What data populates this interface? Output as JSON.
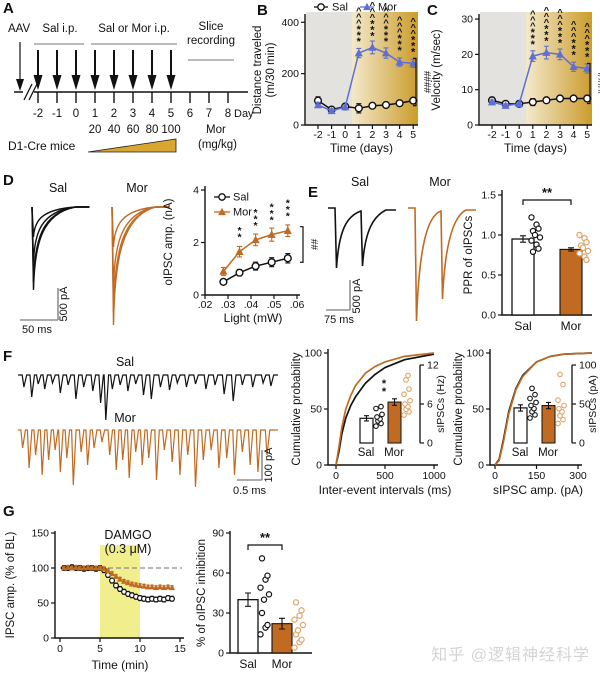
{
  "figure": {
    "panel_labels": {
      "A": "A",
      "B": "B",
      "C": "C",
      "D": "D",
      "E": "E",
      "F": "F",
      "G": "G"
    },
    "watermark": "知乎 @逻辑神经科学",
    "colors": {
      "sal": "#111111",
      "mor_blue": "#5e6fd3",
      "mor_orange": "#c16a22",
      "mor_scatter": "#dea469",
      "gold_light": "#f3e9cb",
      "gold_dark": "#cc9c2c",
      "gray_bg": "#e4e2df",
      "yellow_shade": "#f1ee8d",
      "scalebar": "#909090",
      "dash": "#8c8c8c"
    }
  },
  "panelA": {
    "aav": "AAV",
    "sal_ip": "Sal i.p.",
    "sal_or_mor_ip": "Sal or Mor i.p.",
    "slice_line1": "Slice",
    "slice_line2": "recording",
    "days": [
      "-2",
      "-1",
      "0",
      "1",
      "2",
      "3",
      "4",
      "5",
      "6",
      "7",
      "8"
    ],
    "day_word": "Day",
    "sal_arrow_days": [
      -2,
      -1,
      0
    ],
    "mor_arrow_days": [
      1,
      2,
      3,
      4,
      5
    ],
    "doses": [
      "20",
      "40",
      "60",
      "80",
      "100"
    ],
    "mor": "Mor",
    "mor_unit": "(mg/kg)",
    "mice": "D1-Cre mice"
  },
  "chart_data": {
    "B": {
      "type": "line",
      "xlabel": "Time (days)",
      "ylabel_lines": [
        "Distance traveled",
        "(m/30 min)"
      ],
      "x": [
        -2,
        -1,
        0,
        1,
        2,
        3,
        4,
        5
      ],
      "yticks": [
        0,
        200,
        400
      ],
      "ylim": [
        0,
        440
      ],
      "legend": [
        "Sal",
        "Mor"
      ],
      "series": [
        {
          "name": "Sal",
          "marker": "circle",
          "values": [
            95,
            60,
            72,
            65,
            75,
            78,
            85,
            95
          ],
          "err": [
            15,
            8,
            10,
            18,
            8,
            8,
            8,
            8
          ]
        },
        {
          "name": "Mor",
          "marker": "triangle",
          "values": [
            78,
            55,
            70,
            280,
            302,
            280,
            245,
            240
          ],
          "err": [
            10,
            8,
            8,
            18,
            25,
            20,
            16,
            16
          ]
        }
      ],
      "sig_days": [
        1,
        2,
        3,
        4,
        5
      ],
      "stars": "***",
      "carets": "^^^",
      "bracket": "####"
    },
    "C": {
      "type": "line",
      "xlabel": "Time (days)",
      "ylabel_lines": [
        "Velocity (m/sec)"
      ],
      "x": [
        -2,
        -1,
        0,
        1,
        2,
        3,
        4,
        5
      ],
      "yticks": [
        0,
        10,
        20,
        30
      ],
      "ylim": [
        0,
        32
      ],
      "series": [
        {
          "name": "Sal",
          "marker": "circle",
          "values": [
            7,
            6,
            6,
            6.5,
            7,
            7.5,
            7.5,
            7.5
          ],
          "err": [
            0.8,
            0.5,
            0.5,
            1,
            0.6,
            0.6,
            0.6,
            0.6
          ]
        },
        {
          "name": "Mor",
          "marker": "triangle",
          "values": [
            6.5,
            5.5,
            6,
            19.5,
            20.5,
            20,
            16.5,
            16
          ],
          "err": [
            0.6,
            0.5,
            0.5,
            1.5,
            1.8,
            1.5,
            1.3,
            1.3
          ]
        }
      ],
      "sig_days": [
        1,
        2,
        3,
        4,
        5
      ],
      "stars": "***",
      "carets": "^^^",
      "bracket": "####"
    },
    "D": {
      "type": "line",
      "xlabel": "Light (mW)",
      "ylabel": "oIPSC amp. (nA)",
      "xticks": [
        0.02,
        0.03,
        0.04,
        0.05,
        0.06
      ],
      "xtick_labels": [
        ".02",
        ".03",
        ".04",
        ".05",
        ".06"
      ],
      "yticks": [
        0,
        2,
        4
      ],
      "legend": [
        "Sal",
        "Mor"
      ],
      "x": [
        0.028,
        0.035,
        0.042,
        0.049,
        0.056
      ],
      "series": [
        {
          "name": "Sal",
          "marker": "circle",
          "values": [
            0.5,
            0.85,
            1.1,
            1.25,
            1.4
          ],
          "err": [
            0.1,
            0.12,
            0.15,
            0.17,
            0.18
          ]
        },
        {
          "name": "Mor",
          "marker": "triangle",
          "values": [
            0.9,
            1.65,
            2.1,
            2.3,
            2.45
          ],
          "err": [
            0.15,
            0.2,
            0.22,
            0.25,
            0.22
          ]
        }
      ],
      "sig_per_point": [
        "",
        "**",
        "***",
        "***",
        "***"
      ],
      "bracket": "##"
    },
    "E": {
      "type": "bar",
      "ylabel": "PPR of oIPSCs",
      "ytick_labels": [
        "0.0",
        "0.5",
        "1.0",
        "1.5"
      ],
      "yticks": [
        0,
        0.5,
        1,
        1.5
      ],
      "categories": [
        "Sal",
        "Mor"
      ],
      "values": [
        0.95,
        0.82
      ],
      "err": [
        0.04,
        0.02
      ],
      "sig": "**",
      "scatter_sal": [
        1.22,
        1.13,
        1.08,
        1.05,
        1.0,
        0.97,
        0.93,
        0.88,
        0.83,
        0.79
      ],
      "scatter_mor": [
        1.0,
        0.96,
        0.91,
        0.87,
        0.84,
        0.8,
        0.77,
        0.73,
        0.69
      ]
    },
    "F1": {
      "type": "cumulative",
      "xlabel": "Inter-event intervals (ms)",
      "ylabel": "Cumulative probability",
      "xticks": [
        0,
        500,
        1000
      ],
      "yticks": [
        0,
        50,
        100
      ],
      "curve_sal": [
        [
          0,
          0
        ],
        [
          30,
          12
        ],
        [
          60,
          28
        ],
        [
          100,
          42
        ],
        [
          150,
          53
        ],
        [
          200,
          61
        ],
        [
          300,
          73
        ],
        [
          400,
          81
        ],
        [
          500,
          87
        ],
        [
          700,
          94
        ],
        [
          1000,
          99
        ]
      ],
      "curve_mor": [
        [
          0,
          0
        ],
        [
          30,
          16
        ],
        [
          60,
          34
        ],
        [
          100,
          50
        ],
        [
          150,
          62
        ],
        [
          200,
          71
        ],
        [
          300,
          82
        ],
        [
          400,
          88
        ],
        [
          500,
          92
        ],
        [
          700,
          97
        ],
        [
          1000,
          100
        ]
      ],
      "inset": {
        "ylabel": "sIPSCs (Hz)",
        "yticks": [
          0,
          6,
          12
        ],
        "categories": [
          "Sal",
          "Mor"
        ],
        "values": [
          3.8,
          6.3
        ],
        "err": [
          0.4,
          0.5
        ],
        "sig": "**",
        "scatter_sal": [
          2.6,
          3.0,
          3.4,
          3.7,
          4.0,
          4.4,
          5.3,
          5.6
        ],
        "scatter_mor": [
          4.3,
          4.8,
          5.2,
          5.6,
          6.0,
          6.5,
          7.5,
          8.3,
          9.7,
          10.4
        ]
      }
    },
    "F2": {
      "type": "cumulative",
      "xlabel": "sIPSC amp. (pA)",
      "ylabel": "Cumulative probability",
      "xticks": [
        0,
        150,
        300
      ],
      "yticks": [
        0,
        50,
        100
      ],
      "curve_sal": [
        [
          0,
          0
        ],
        [
          15,
          5
        ],
        [
          30,
          22
        ],
        [
          50,
          48
        ],
        [
          75,
          68
        ],
        [
          100,
          80
        ],
        [
          150,
          92
        ],
        [
          200,
          97
        ],
        [
          250,
          99
        ],
        [
          350,
          100
        ]
      ],
      "curve_mor": [
        [
          0,
          0
        ],
        [
          15,
          4
        ],
        [
          30,
          20
        ],
        [
          50,
          46
        ],
        [
          75,
          67
        ],
        [
          100,
          79
        ],
        [
          150,
          92
        ],
        [
          200,
          97
        ],
        [
          250,
          99
        ],
        [
          350,
          100
        ]
      ],
      "inset": {
        "ylabel": "sIPSCs (pA)",
        "yticks": [
          0,
          50,
          100
        ],
        "categories": [
          "Sal",
          "Mor"
        ],
        "values": [
          45,
          48
        ],
        "err": [
          4,
          4
        ],
        "sig": "",
        "scatter_sal": [
          32,
          36,
          40,
          44,
          48,
          52,
          57,
          62,
          70
        ],
        "scatter_mor": [
          25,
          30,
          35,
          40,
          44,
          48,
          55,
          75,
          88
        ]
      }
    },
    "G1": {
      "type": "line",
      "xlabel": "Time (min)",
      "ylabel": "IPSC amp. (% of BL)",
      "xticks": [
        0,
        5,
        10,
        15
      ],
      "yticks": [
        0,
        50,
        100,
        150
      ],
      "drug": "DAMGO",
      "dose": "(0.3 μM)",
      "shade_min": [
        5,
        10
      ],
      "baseline": 100,
      "t": [
        0.5,
        1,
        1.5,
        2,
        2.5,
        3,
        3.5,
        4,
        4.5,
        5,
        5.5,
        6,
        6.5,
        7,
        7.5,
        8,
        8.5,
        9,
        9.5,
        10,
        10.5,
        11,
        11.5,
        12,
        12.5,
        13,
        13.5,
        14
      ],
      "sal": [
        100,
        100,
        101,
        100,
        100,
        99,
        100,
        100,
        99,
        100,
        97,
        90,
        82,
        75,
        70,
        66,
        63,
        61,
        59,
        57,
        56,
        55,
        56,
        55,
        56,
        55,
        57,
        56
      ],
      "mor": [
        100,
        101,
        100,
        101,
        100,
        100,
        101,
        100,
        100,
        100,
        99,
        96,
        92,
        88,
        84,
        81,
        79,
        77,
        76,
        75,
        74,
        73,
        73,
        72,
        73,
        72,
        73,
        72
      ],
      "err_sal": 3.5,
      "err_mor": 2.5
    },
    "G2": {
      "type": "bar",
      "ylabel": "% of oIPSC inhibition",
      "yticks": [
        0,
        30,
        60,
        90
      ],
      "categories": [
        "Sal",
        "Mor"
      ],
      "values": [
        40,
        22
      ],
      "err": [
        5,
        4
      ],
      "sig": "**",
      "scatter_sal": [
        14,
        19,
        21,
        30,
        40,
        44,
        49,
        55,
        58,
        71
      ],
      "scatter_mor": [
        4,
        8,
        10,
        14,
        17,
        21,
        25,
        28,
        32,
        38
      ]
    }
  },
  "traces": {
    "D": {
      "sal_label": "Sal",
      "mor_label": "Mor",
      "sal_amplitudes": [
        30,
        55,
        75,
        83
      ],
      "mor_amplitudes": [
        40,
        80,
        105,
        118
      ],
      "scale_h": "50 ms",
      "scale_v": "500 pA"
    },
    "E": {
      "sal_label": "Sal",
      "mor_label": "Mor",
      "sal_pulses": [
        60,
        55
      ],
      "mor_pulses": [
        113,
        88
      ],
      "scale_h": "75 ms",
      "scale_v": "500 pA"
    },
    "F": {
      "sal_label": "Sal",
      "mor_label": "Mor",
      "scale_h": "0.5 ms",
      "scale_v": "100 pA",
      "sal_spikes": [
        [
          0.02,
          12
        ],
        [
          0.05,
          22
        ],
        [
          0.075,
          9
        ],
        [
          0.1,
          14
        ],
        [
          0.13,
          8
        ],
        [
          0.16,
          18
        ],
        [
          0.19,
          10
        ],
        [
          0.22,
          24
        ],
        [
          0.25,
          12
        ],
        [
          0.285,
          16
        ],
        [
          0.315,
          28
        ],
        [
          0.335,
          45
        ],
        [
          0.36,
          14
        ],
        [
          0.39,
          10
        ],
        [
          0.42,
          16
        ],
        [
          0.45,
          9
        ],
        [
          0.48,
          20
        ],
        [
          0.51,
          24
        ],
        [
          0.545,
          12
        ],
        [
          0.58,
          15
        ],
        [
          0.61,
          8
        ],
        [
          0.645,
          12
        ],
        [
          0.68,
          9
        ],
        [
          0.72,
          14
        ],
        [
          0.755,
          10
        ],
        [
          0.79,
          19
        ],
        [
          0.825,
          26
        ],
        [
          0.86,
          10
        ],
        [
          0.9,
          12
        ],
        [
          0.94,
          8
        ],
        [
          0.97,
          11
        ]
      ],
      "mor_spikes": [
        [
          0.015,
          18
        ],
        [
          0.04,
          38
        ],
        [
          0.065,
          25
        ],
        [
          0.09,
          45
        ],
        [
          0.115,
          30
        ],
        [
          0.14,
          20
        ],
        [
          0.16,
          42
        ],
        [
          0.185,
          28
        ],
        [
          0.21,
          55
        ],
        [
          0.24,
          22
        ],
        [
          0.265,
          35
        ],
        [
          0.29,
          18
        ],
        [
          0.32,
          12
        ],
        [
          0.35,
          25
        ],
        [
          0.375,
          40
        ],
        [
          0.4,
          30
        ],
        [
          0.425,
          48
        ],
        [
          0.45,
          22
        ],
        [
          0.475,
          35
        ],
        [
          0.5,
          28
        ],
        [
          0.53,
          50
        ],
        [
          0.56,
          20
        ],
        [
          0.59,
          32
        ],
        [
          0.62,
          45
        ],
        [
          0.65,
          25
        ],
        [
          0.68,
          57
        ],
        [
          0.71,
          30
        ],
        [
          0.74,
          20
        ],
        [
          0.77,
          38
        ],
        [
          0.8,
          28
        ],
        [
          0.83,
          45
        ],
        [
          0.86,
          22
        ],
        [
          0.89,
          35
        ],
        [
          0.92,
          42
        ],
        [
          0.955,
          25
        ]
      ]
    }
  }
}
